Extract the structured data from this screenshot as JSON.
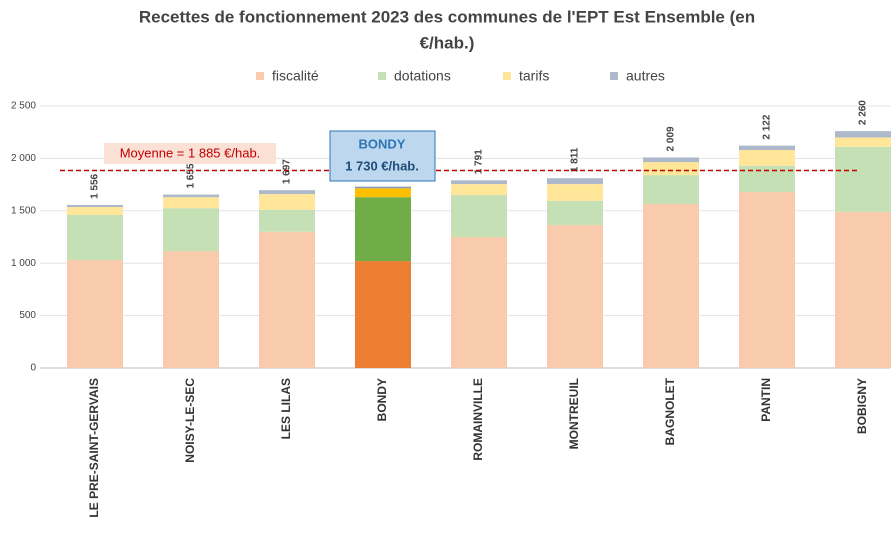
{
  "chart_data": {
    "type": "stacked_bar",
    "title": [
      "Recettes de fonctionnement 2023 des communes de l'EPT Est Ensemble (en",
      "€/hab.)"
    ],
    "categories": [
      "LE PRE-SAINT-GERVAIS",
      "NOISY-LE-SEC",
      "LES LILAS",
      "BONDY",
      "ROMAINVILLE",
      "MONTREUIL",
      "BAGNOLET",
      "PANTIN",
      "BOBIGNY"
    ],
    "series": [
      {
        "name": "fiscalité",
        "color": "#f8cbad",
        "highlight_color": "#ed7d31",
        "values": [
          1030,
          1115,
          1300,
          1020,
          1250,
          1365,
          1565,
          1680,
          1490
        ]
      },
      {
        "name": "dotations",
        "color": "#c5e0b4",
        "highlight_color": "#70ad47",
        "values": [
          430,
          410,
          210,
          610,
          400,
          230,
          275,
          250,
          620
        ]
      },
      {
        "name": "tarifs",
        "color": "#ffe699",
        "highlight_color": "#ffc000",
        "values": [
          76,
          105,
          150,
          85,
          105,
          160,
          125,
          150,
          90
        ]
      },
      {
        "name": "autres",
        "color": "#adb9ca",
        "highlight_color": "#8497b0",
        "values": [
          20,
          25,
          37,
          15,
          36,
          56,
          44,
          42,
          60
        ]
      }
    ],
    "totals": [
      1556,
      1655,
      1697,
      1730,
      1791,
      1811,
      2009,
      2122,
      2260
    ],
    "total_labels": [
      "1 556",
      "1 655",
      "1 697",
      null,
      "1 791",
      "1 811",
      "2 009",
      "2 122",
      "2 260"
    ],
    "ylim": [
      0,
      2500
    ],
    "yticks": [
      0,
      500,
      {
        "value": 1000,
        "label": "1 000"
      },
      {
        "value": 1500,
        "label": "1 500"
      },
      {
        "value": 2000,
        "label": "2 000"
      },
      {
        "value": 2500,
        "label": "2 500"
      }
    ],
    "grid": true,
    "legend": "top",
    "average_line": {
      "value": 1885,
      "label": "Moyenne = 1 885 €/hab.",
      "color": "#c00000"
    },
    "callout": {
      "title": "BONDY",
      "text": "1 730 €/hab."
    }
  }
}
